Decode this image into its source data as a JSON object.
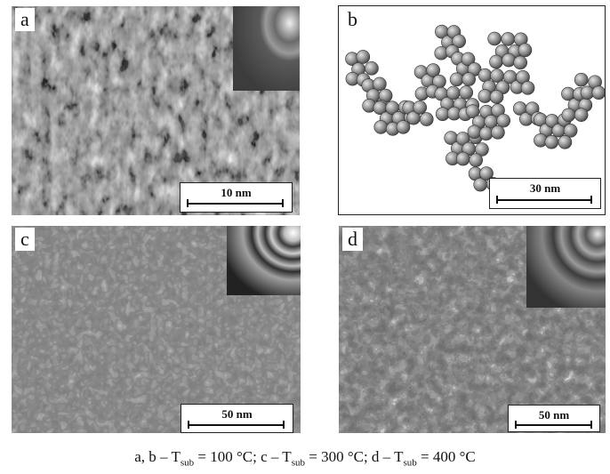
{
  "panels": {
    "a": {
      "letter": "a",
      "scale_label": "10 nm"
    },
    "b": {
      "letter": "b",
      "scale_label": "30 nm"
    },
    "c": {
      "letter": "c",
      "scale_label": "50 nm"
    },
    "d": {
      "letter": "d",
      "scale_label": "50 nm"
    }
  },
  "caption": {
    "part1": "a, b – T",
    "sub1": "sub",
    "part2": " = 100 °C; c – T",
    "sub2": "sub",
    "part3": " = 300 °C; d – T",
    "sub3": "sub",
    "part4": " = 400 °C"
  }
}
